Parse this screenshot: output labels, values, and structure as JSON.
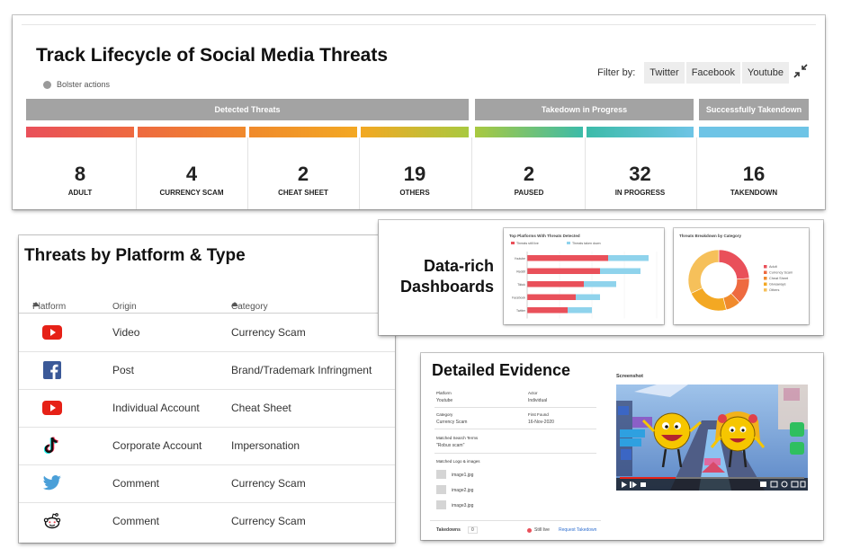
{
  "lifecycle": {
    "title": "Track Lifecycle of Social Media Threats",
    "legend": "Bolster actions",
    "filter_label": "Filter by:",
    "filters": [
      "Twitter",
      "Facebook",
      "Youtube"
    ],
    "groups": [
      "Detected Threats",
      "Takedown in Progress",
      "Successfully Takendown"
    ],
    "stats": [
      {
        "value": "8",
        "label": "ADULT",
        "color": "#e9505a"
      },
      {
        "value": "4",
        "label": "CURRENCY SCAM",
        "color": "#ee6a40"
      },
      {
        "value": "2",
        "label": "CHEAT SHEET",
        "color": "#f08a2c"
      },
      {
        "value": "19",
        "label": "OTHERS",
        "color": "#f3a823"
      },
      {
        "value": "2",
        "label": "PAUSED",
        "color": "#a9c940"
      },
      {
        "value": "32",
        "label": "IN PROGRESS",
        "color": "#3cbba9"
      },
      {
        "value": "16",
        "label": "TAKENDOWN",
        "color": "#6ec4e6"
      }
    ]
  },
  "platforms": {
    "title": "Threats by Platform & Type",
    "columns": [
      "Platform",
      "Origin",
      "Category"
    ],
    "rows": [
      {
        "platform_icon": "youtube-icon",
        "origin": "Video",
        "category": "Currency Scam"
      },
      {
        "platform_icon": "facebook-icon",
        "origin": "Post",
        "category": "Brand/Trademark Infringment"
      },
      {
        "platform_icon": "youtube-icon",
        "origin": "Individual Account",
        "category": "Cheat Sheet"
      },
      {
        "platform_icon": "tiktok-icon",
        "origin": "Corporate Account",
        "category": "Impersonation"
      },
      {
        "platform_icon": "twitter-icon",
        "origin": "Comment",
        "category": "Currency Scam"
      },
      {
        "platform_icon": "reddit-icon",
        "origin": "Comment",
        "category": "Currency Scam"
      }
    ]
  },
  "dashboards": {
    "tagline_line1": "Data-rich",
    "tagline_line2": "Dashboards",
    "bar_chart_title": "Top Platforms With Threats Detected",
    "bar_legend": [
      "Threats still live",
      "Threats taken down"
    ],
    "donut_title": "Threats Breakdown by Category",
    "donut_legend": [
      "Adult",
      "Currency Scam",
      "Cheat Sheet",
      "Giveaways",
      "Others"
    ]
  },
  "evidence": {
    "title": "Detailed Evidence",
    "fields": [
      {
        "key": "Platform",
        "value": "Youtube"
      },
      {
        "key": "Actor",
        "value": "Individual"
      },
      {
        "key": "Category",
        "value": "Currency Scam"
      },
      {
        "key": "First Found",
        "value": "16-Nov-2020"
      },
      {
        "key": "Matched Search Terms",
        "value": "\"Robux scam\""
      }
    ],
    "logos_label": "Matched Logo & images",
    "images": [
      "image1.jpg",
      "image2.jpg",
      "image3.jpg"
    ],
    "takedowns_label": "Takedowns",
    "takedowns_count": "0",
    "status": "Still live",
    "request_link": "Request Takedown",
    "screenshot_label": "Screenshot"
  },
  "chart_data": [
    {
      "type": "bar",
      "title": "Top Platforms With Threats Detected",
      "orientation": "horizontal",
      "stacked": true,
      "categories": [
        "Youtube",
        "Reddit",
        "Tiktok",
        "Facebook",
        "Twitter"
      ],
      "series": [
        {
          "name": "Threats still live",
          "values": [
            10,
            9,
            7,
            6,
            5
          ]
        },
        {
          "name": "Threats taken down",
          "values": [
            5,
            5,
            4,
            3,
            3
          ]
        }
      ],
      "xlim": [
        0,
        16
      ]
    },
    {
      "type": "pie",
      "title": "Threats Breakdown by Category",
      "donut": true,
      "labels": [
        "Adult",
        "Currency Scam",
        "Cheat Sheet",
        "Giveaways",
        "Others"
      ],
      "values": [
        24,
        14,
        8,
        22,
        32
      ],
      "colors": [
        "#e9505a",
        "#ee6a40",
        "#f08a2c",
        "#f3a823",
        "#f6c05a"
      ]
    }
  ]
}
